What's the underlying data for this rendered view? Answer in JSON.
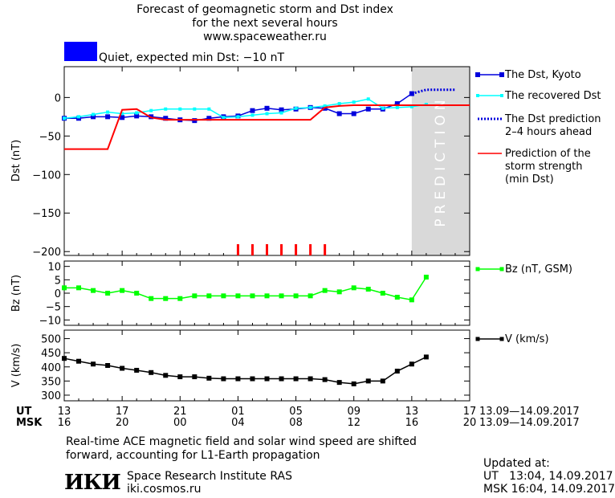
{
  "header": {
    "title_line1": "Forecast of geomagnetic storm and Dst index",
    "title_line2": "for the next several hours",
    "site": "www.spaceweather.ru",
    "status_text": "Quiet, expected min Dst: −10 nT",
    "status_color": "#0000ff"
  },
  "colors": {
    "dst_kyoto": "#0000dd",
    "dst_recovered": "#00ffff",
    "dst_prediction": "#0000dd",
    "storm_strength": "#ff0000",
    "bz": "#00ff00",
    "v": "#000000",
    "prediction_band": "#d9d9d9",
    "event_ticks": "#ff0000"
  },
  "chart_data": [
    {
      "type": "line",
      "panel": "dst",
      "ylabel": "Dst (nT)",
      "ylim": [
        -205,
        40
      ],
      "yticks": [
        0,
        -50,
        -100,
        -150,
        -200
      ],
      "x_range_hours": [
        0,
        28
      ],
      "prediction_band_hours": [
        24,
        28
      ],
      "prediction_label": "PREDICTION",
      "storm_event_ticks_hours": [
        12,
        13,
        14,
        15,
        16,
        17,
        18
      ],
      "series": [
        {
          "name": "The Dst, Kyoto",
          "x": [
            0,
            1,
            2,
            3,
            4,
            5,
            6,
            7,
            8,
            9,
            10,
            11,
            12,
            13,
            14,
            15,
            16,
            17,
            18,
            19,
            20,
            21,
            22,
            23,
            24
          ],
          "y": [
            -27,
            -27,
            -25,
            -25,
            -26,
            -24,
            -25,
            -27,
            -29,
            -30,
            -27,
            -25,
            -24,
            -17,
            -14,
            -16,
            -15,
            -13,
            -14,
            -21,
            -21,
            -15,
            -15,
            -8,
            5
          ]
        },
        {
          "name": "The recovered Dst",
          "x": [
            0,
            1,
            2,
            3,
            4,
            5,
            6,
            7,
            8,
            9,
            10,
            11,
            12,
            13,
            14,
            15,
            16,
            17,
            18,
            19,
            20,
            21,
            22,
            23,
            24,
            25
          ],
          "y": [
            -27,
            -25,
            -22,
            -19,
            -21,
            -20,
            -17,
            -15,
            -15,
            -15,
            -15,
            -26,
            -25,
            -23,
            -21,
            -20,
            -14,
            -13,
            -11,
            -8,
            -6,
            -2,
            -14,
            -13,
            -12,
            -9
          ]
        },
        {
          "name": "The Dst prediction",
          "name_line2": "2–4 hours ahead",
          "x": [
            24,
            25,
            26,
            27
          ],
          "y": [
            5,
            10,
            10,
            10
          ]
        },
        {
          "name": "Prediction of the",
          "name_line2": "storm strength",
          "name_line3": "(min Dst)",
          "x": [
            0,
            2,
            3,
            4,
            5,
            6,
            7,
            12,
            17,
            18,
            19,
            20,
            28
          ],
          "y": [
            -67,
            -67,
            -67,
            -16,
            -15,
            -26,
            -29,
            -29,
            -29,
            -13,
            -11,
            -10,
            -10
          ]
        }
      ]
    },
    {
      "type": "line",
      "panel": "bz",
      "ylabel": "Bz (nT)",
      "ylim": [
        -12,
        12
      ],
      "yticks": [
        10,
        5,
        0,
        -5,
        -10
      ],
      "series": [
        {
          "name": "Bz (nT, GSM)",
          "x": [
            0,
            1,
            2,
            3,
            4,
            5,
            6,
            7,
            8,
            9,
            10,
            11,
            12,
            13,
            14,
            15,
            16,
            17,
            18,
            19,
            20,
            21,
            22,
            23,
            24,
            25
          ],
          "y": [
            2,
            2,
            1,
            0,
            1,
            0,
            -2,
            -2,
            -2,
            -1,
            -1,
            -1,
            -1,
            -1,
            -1,
            -1,
            -1,
            -1,
            1,
            0.5,
            2,
            1.5,
            0,
            -1.5,
            -2.5,
            6
          ]
        }
      ]
    },
    {
      "type": "line",
      "panel": "v",
      "ylabel": "V (km/s)",
      "ylim": [
        280,
        530
      ],
      "yticks": [
        500,
        450,
        400,
        350,
        300,
        250
      ],
      "ytick_labels": [
        "500",
        "450",
        "400",
        "350",
        "300"
      ],
      "series": [
        {
          "name": "V (km/s)",
          "x": [
            0,
            1,
            2,
            3,
            4,
            5,
            6,
            7,
            8,
            9,
            10,
            11,
            12,
            13,
            14,
            15,
            16,
            17,
            18,
            19,
            20,
            21,
            22,
            23,
            24,
            25
          ],
          "y": [
            430,
            420,
            410,
            405,
            395,
            388,
            380,
            370,
            365,
            365,
            360,
            358,
            358,
            358,
            358,
            358,
            358,
            358,
            355,
            345,
            340,
            350,
            350,
            385,
            410,
            435
          ]
        }
      ]
    }
  ],
  "xaxis": {
    "ut_label": "UT",
    "msk_label": "MSK",
    "ut_ticks": [
      "13",
      "17",
      "21",
      "01",
      "05",
      "09",
      "13",
      "17"
    ],
    "msk_ticks": [
      "16",
      "20",
      "00",
      "04",
      "08",
      "12",
      "16",
      "20"
    ],
    "tick_hours": [
      0,
      4,
      8,
      12,
      16,
      20,
      24,
      28
    ],
    "date_range": "13.09—14.09.2017"
  },
  "footer": {
    "note_line1": "Real-time ACE magnetic field and solar wind speed are shifted",
    "note_line2": "forward, accounting for L1-Earth propagation",
    "logo": "ИКИ",
    "institute": "Space Research Institute RAS",
    "institute_site": "iki.cosmos.ru",
    "updated_label": "Updated at:",
    "updated_ut": "UT   13:04, 14.09.2017",
    "updated_msk": "MSK 16:04, 14.09.2017"
  }
}
